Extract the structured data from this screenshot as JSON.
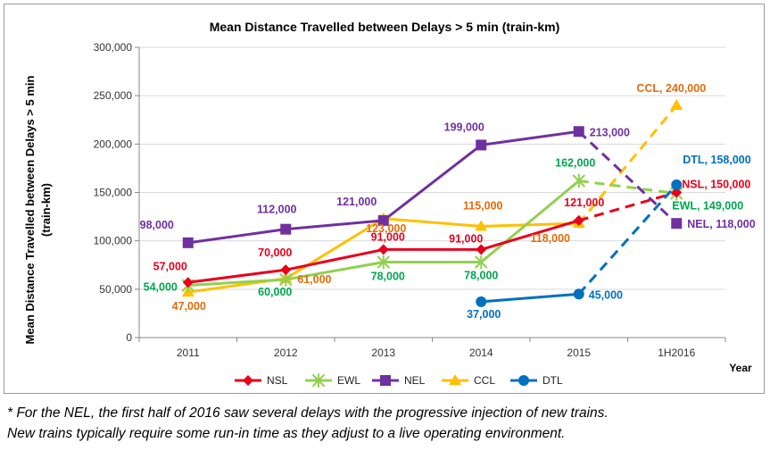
{
  "chart_data": {
    "type": "line",
    "title": "Mean Distance Travelled between Delays > 5 min (train-km)",
    "ylabel_line1": "Mean Distance Travelled between Delays > 5 min",
    "ylabel_line2": "(train-km)",
    "xlabel": "Year",
    "categories": [
      "2011",
      "2012",
      "2013",
      "2014",
      "2015",
      "1H2016"
    ],
    "ylim": [
      0,
      300000
    ],
    "yticks": [
      0,
      50000,
      100000,
      150000,
      200000,
      250000,
      300000
    ],
    "ytick_labels": [
      "0",
      "50,000",
      "100,000",
      "150,000",
      "200,000",
      "250,000",
      "300,000"
    ],
    "gridlines": true,
    "legend_position": "bottom",
    "series": [
      {
        "name": "NSL",
        "color": "#e8001c",
        "marker": "diamond",
        "values": [
          57000,
          70000,
          91000,
          91000,
          121000,
          150000
        ],
        "labels": [
          "57,000",
          "70,000",
          "91,000",
          "91,000",
          "121,000",
          "NSL, 150,000"
        ]
      },
      {
        "name": "EWL",
        "color": "#92d050",
        "marker": "asterisk",
        "values": [
          54000,
          60000,
          78000,
          78000,
          162000,
          149000
        ],
        "labels": [
          "54,000",
          "60,000",
          "78,000",
          "78,000",
          "162,000",
          "EWL, 149,000"
        ]
      },
      {
        "name": "NEL",
        "color": "#7030a0",
        "marker": "square",
        "values": [
          98000,
          112000,
          121000,
          199000,
          213000,
          118000
        ],
        "labels": [
          "98,000",
          "112,000",
          "121,000",
          "199,000",
          "213,000",
          "NEL, 118,000"
        ]
      },
      {
        "name": "CCL",
        "color": "#ffc000",
        "marker": "triangle",
        "values": [
          47000,
          61000,
          123000,
          115000,
          118000,
          240000
        ],
        "labels": [
          "47,000",
          "61,000",
          "123,000",
          "115,000",
          "118,000",
          "CCL, 240,000"
        ]
      },
      {
        "name": "DTL",
        "color": "#0070c0",
        "marker": "circle",
        "values": [
          null,
          null,
          null,
          37000,
          45000,
          158000
        ],
        "labels": [
          "",
          "",
          "",
          "37,000",
          "45,000",
          "DTL, 158,000"
        ]
      }
    ],
    "dashed_final_segment": true
  },
  "footnote": {
    "line1": "* For the NEL, the first half of 2016 saw several delays with the progressive injection of new trains.",
    "line2": "New trains typically require some run-in time as they adjust to a live operating environment."
  }
}
